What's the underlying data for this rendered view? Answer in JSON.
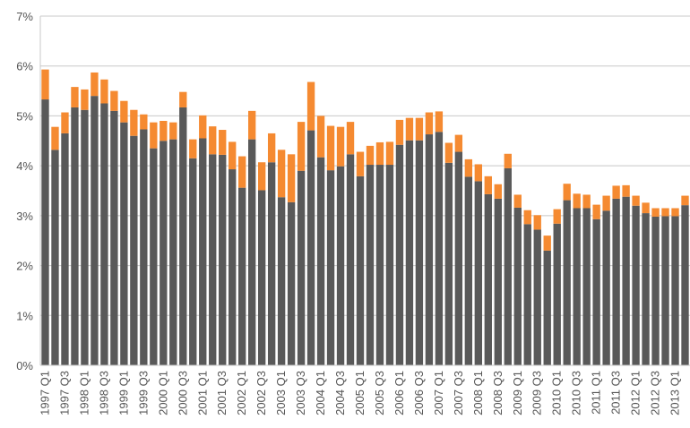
{
  "chart_data": {
    "type": "stacked-bar",
    "categories": [
      "1997 Q1",
      null,
      "1997 Q3",
      null,
      "1998 Q1",
      null,
      "1998 Q3",
      null,
      "1999 Q1",
      null,
      "1999 Q3",
      null,
      "2000 Q1",
      null,
      "2000 Q3",
      null,
      "2001 Q1",
      null,
      "2001 Q3",
      null,
      "2002 Q1",
      null,
      "2002 Q3",
      null,
      "2003 Q1",
      null,
      "2003 Q3",
      null,
      "2004 Q1",
      null,
      "2004 Q3",
      null,
      "2005 Q1",
      null,
      "2005 Q3",
      null,
      "2006 Q1",
      null,
      "2006 Q3",
      null,
      "2007 Q1",
      null,
      "2007 Q3",
      null,
      "2008 Q1",
      null,
      "2008 Q3",
      null,
      "2009 Q1",
      null,
      "2009 Q3",
      null,
      "2010 Q1",
      null,
      "2010 Q3",
      null,
      "2011 Q1",
      null,
      "2011 Q3",
      null,
      "2012 Q1",
      null,
      "2012 Q3",
      null,
      "2013 Q1",
      null
    ],
    "series": [
      {
        "color": "#595959",
        "values": [
          5.33,
          4.32,
          4.65,
          5.17,
          5.12,
          5.4,
          5.25,
          5.1,
          4.87,
          4.6,
          4.73,
          4.35,
          4.5,
          4.53,
          5.17,
          4.15,
          4.55,
          4.23,
          4.22,
          3.93,
          3.56,
          4.53,
          3.51,
          4.07,
          3.37,
          3.27,
          3.9,
          4.71,
          4.17,
          3.91,
          3.99,
          4.23,
          3.79,
          4.02,
          4.02,
          4.02,
          4.42,
          4.51,
          4.51,
          4.63,
          4.68,
          4.06,
          4.28,
          3.78,
          3.69,
          3.43,
          3.34,
          3.95,
          3.16,
          2.83,
          2.72,
          2.3,
          2.84,
          3.31,
          3.15,
          3.15,
          2.93,
          3.1,
          3.34,
          3.38,
          3.2,
          3.05,
          2.98,
          2.99,
          2.99,
          3.21
        ]
      },
      {
        "color": "#f58a31",
        "values": [
          0.6,
          0.46,
          0.42,
          0.41,
          0.41,
          0.47,
          0.48,
          0.4,
          0.43,
          0.52,
          0.3,
          0.52,
          0.4,
          0.34,
          0.31,
          0.38,
          0.46,
          0.56,
          0.5,
          0.55,
          0.63,
          0.57,
          0.56,
          0.58,
          0.95,
          0.96,
          0.98,
          0.97,
          0.83,
          0.89,
          0.79,
          0.65,
          0.49,
          0.38,
          0.45,
          0.46,
          0.5,
          0.45,
          0.45,
          0.44,
          0.41,
          0.4,
          0.34,
          0.35,
          0.34,
          0.36,
          0.29,
          0.29,
          0.26,
          0.28,
          0.29,
          0.3,
          0.29,
          0.33,
          0.29,
          0.27,
          0.29,
          0.3,
          0.26,
          0.23,
          0.2,
          0.21,
          0.17,
          0.16,
          0.16,
          0.19
        ]
      }
    ],
    "ylim": [
      0,
      7
    ],
    "yticks": [
      {
        "value": 0,
        "label": "0%"
      },
      {
        "value": 1,
        "label": "1%"
      },
      {
        "value": 2,
        "label": "2%"
      },
      {
        "value": 3,
        "label": "3%"
      },
      {
        "value": 4,
        "label": "4%"
      },
      {
        "value": 5,
        "label": "5%"
      },
      {
        "value": 6,
        "label": "6%"
      },
      {
        "value": 7,
        "label": "7%"
      }
    ],
    "grid": true
  }
}
